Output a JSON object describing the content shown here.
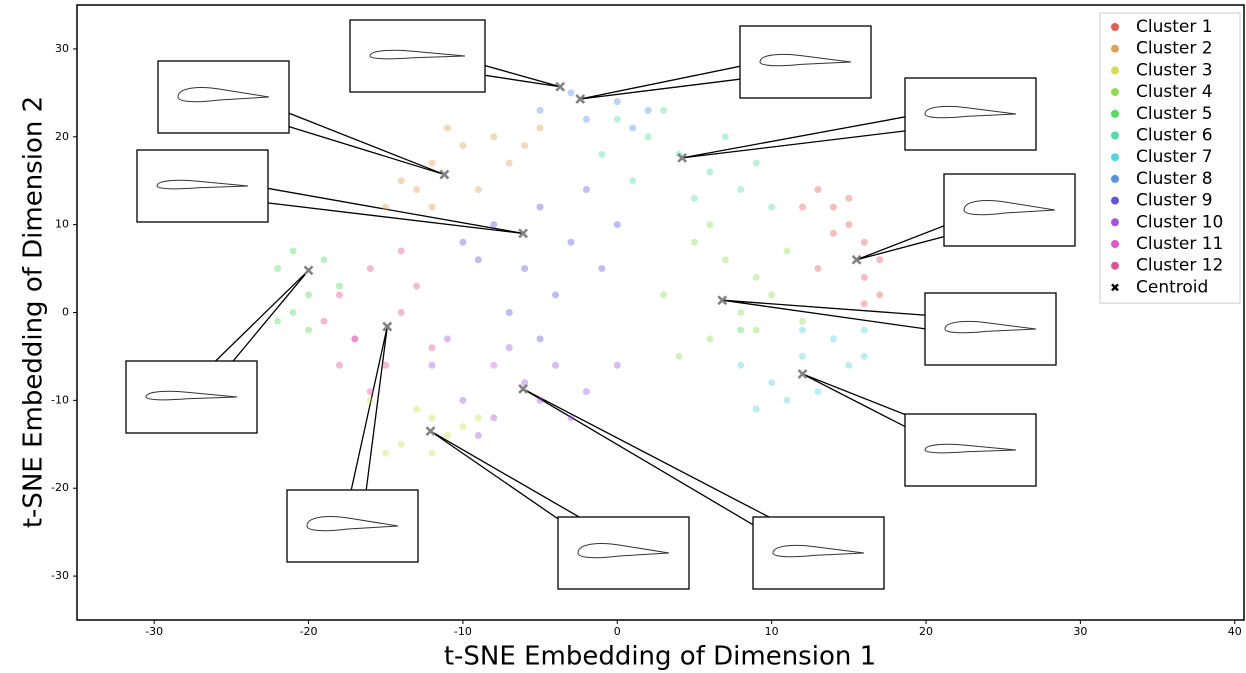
{
  "chart_data": {
    "type": "scatter",
    "xlabel": "t-SNE Embedding of Dimension 1",
    "ylabel": "t-SNE Embedding of Dimension 2",
    "xlim": [
      -35,
      40.6
    ],
    "ylim": [
      -35,
      35
    ],
    "xticks": [
      -30,
      -20,
      -10,
      0,
      10,
      20,
      30,
      40
    ],
    "yticks": [
      -30,
      -20,
      -10,
      0,
      10,
      20,
      30
    ],
    "legend": "upper right",
    "series": [
      {
        "name": "Cluster 1",
        "color": "#db5f57",
        "x": [
          13,
          14,
          15,
          16,
          17,
          16,
          17,
          14,
          12,
          15,
          16,
          13
        ],
        "y": [
          14,
          12,
          10,
          8,
          6,
          4,
          2,
          9,
          12,
          13,
          1,
          5
        ]
      },
      {
        "name": "Cluster 2",
        "color": "#dba157",
        "x": [
          -14,
          -12,
          -10,
          -8,
          -6,
          -12,
          -15,
          -9,
          -7,
          -11,
          -13,
          -5
        ],
        "y": [
          15,
          17,
          19,
          20,
          19,
          12,
          12,
          14,
          17,
          21,
          14,
          21
        ]
      },
      {
        "name": "Cluster 3",
        "color": "#d3db57",
        "x": [
          -14,
          -12,
          -10,
          -13,
          -11,
          -15,
          -9,
          -16,
          -12
        ],
        "y": [
          -15,
          -12,
          -13,
          -11,
          -14,
          -16,
          -12,
          -10,
          -16
        ]
      },
      {
        "name": "Cluster 4",
        "color": "#91db57",
        "x": [
          5,
          7,
          9,
          8,
          6,
          10,
          4,
          11,
          3,
          9,
          6,
          12
        ],
        "y": [
          8,
          6,
          4,
          0,
          -3,
          2,
          -5,
          7,
          2,
          -2,
          10,
          -1
        ]
      },
      {
        "name": "Cluster 5",
        "color": "#57db5f",
        "x": [
          -22,
          -20,
          -21,
          -19,
          -22,
          -18,
          -21,
          -20,
          8
        ],
        "y": [
          5,
          2,
          0,
          6,
          -1,
          3,
          7,
          -2,
          -2
        ]
      },
      {
        "name": "Cluster 6",
        "color": "#57dba1",
        "x": [
          0,
          2,
          4,
          6,
          8,
          -1,
          3,
          7,
          10,
          5,
          1,
          9
        ],
        "y": [
          22,
          20,
          18,
          16,
          14,
          18,
          23,
          20,
          12,
          13,
          15,
          17
        ]
      },
      {
        "name": "Cluster 7",
        "color": "#57d3db",
        "x": [
          10,
          12,
          14,
          16,
          9,
          11,
          13,
          15,
          8,
          16,
          12
        ],
        "y": [
          -8,
          -5,
          -3,
          -2,
          -11,
          -10,
          -9,
          -6,
          -6,
          -5,
          -2
        ]
      },
      {
        "name": "Cluster 8",
        "color": "#5791db",
        "x": [
          -3,
          0,
          2,
          -5,
          1,
          -2
        ],
        "y": [
          25,
          24,
          23,
          23,
          21,
          22
        ]
      },
      {
        "name": "Cluster 9",
        "color": "#5f57db",
        "x": [
          -8,
          -5,
          -3,
          -6,
          -9,
          -4,
          -2,
          -7,
          -1,
          -10,
          -5,
          0
        ],
        "y": [
          10,
          12,
          8,
          5,
          6,
          2,
          14,
          0,
          5,
          8,
          -3,
          10
        ]
      },
      {
        "name": "Cluster 10",
        "color": "#a157db",
        "x": [
          -10,
          -8,
          -6,
          -4,
          -2,
          -12,
          -7,
          -9,
          -3,
          -11,
          0,
          -5
        ],
        "y": [
          -10,
          -12,
          -8,
          -6,
          -9,
          -6,
          -4,
          -14,
          -12,
          -3,
          -6,
          -10
        ]
      },
      {
        "name": "Cluster 11",
        "color": "#db57d3",
        "x": [
          -17,
          -8
        ],
        "y": [
          -3,
          -6
        ]
      },
      {
        "name": "Cluster 12",
        "color": "#db5791",
        "x": [
          -16,
          -18,
          -14,
          -17,
          -15,
          -13,
          -19,
          -12,
          -16,
          -14,
          -18
        ],
        "y": [
          5,
          2,
          0,
          -3,
          -6,
          3,
          -1,
          -4,
          -9,
          7,
          -6
        ]
      },
      {
        "name": "Centroid",
        "color": "#808080",
        "marker": "x",
        "x": [
          -3.7,
          -2.4,
          -11.2,
          -6.1,
          4.2,
          15.5,
          -20.0,
          6.8,
          -14.9,
          12.0,
          -6.1,
          -12.1
        ],
        "y": [
          25.7,
          24.3,
          15.7,
          9.0,
          17.6,
          6.0,
          4.8,
          1.4,
          -1.6,
          -7.0,
          -8.7,
          -13.5
        ]
      }
    ]
  }
}
